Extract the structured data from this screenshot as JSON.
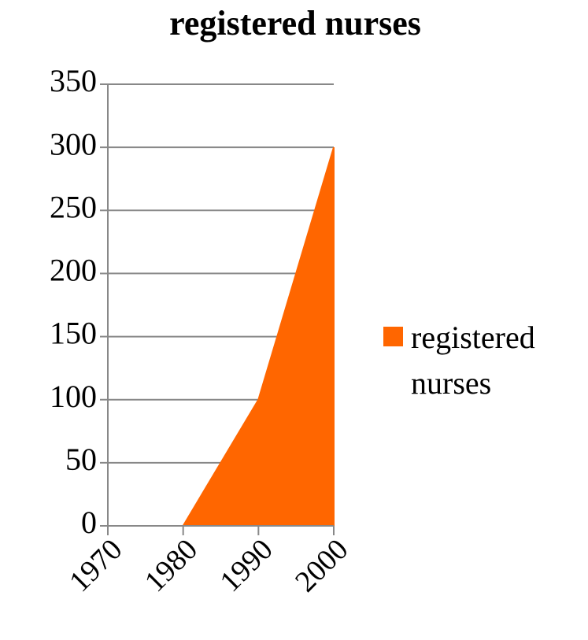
{
  "chart_data": {
    "type": "area",
    "title": "registered nurses",
    "categories": [
      "1970",
      "1980",
      "1990",
      "2000"
    ],
    "series": [
      {
        "name": "registered nurses",
        "color": "#ff6600",
        "values": [
          0,
          0,
          100,
          300
        ]
      }
    ],
    "ylim": [
      0,
      350
    ],
    "yticks": [
      0,
      50,
      100,
      150,
      200,
      250,
      300,
      350
    ],
    "grid": true,
    "legend": "right"
  }
}
